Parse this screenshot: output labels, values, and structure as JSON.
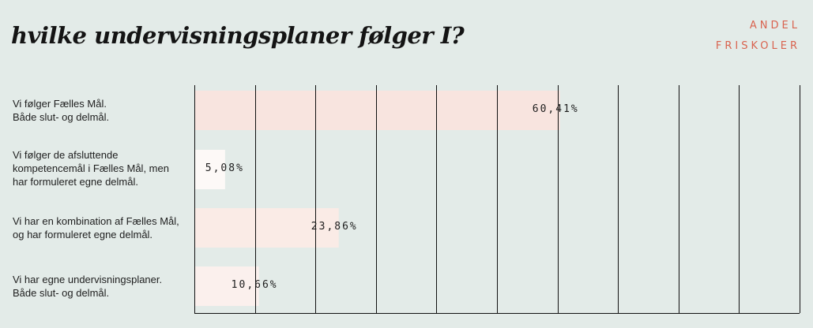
{
  "header": {
    "title": "hvilke undervisningsplaner følger I?",
    "brand_line1": "ANDEL",
    "brand_line2": "FRISKOLER"
  },
  "colors": {
    "background": "#e3ebe8",
    "brand": "#d9634f",
    "bar_fills": [
      "#f8e4df",
      "#fdf9f7",
      "#faebe6",
      "#fbf0ed"
    ],
    "grid": "#111111"
  },
  "chart_data": {
    "type": "bar",
    "orientation": "horizontal",
    "title": "hvilke undervisningsplaner følger I?",
    "categories": [
      "Vi følger Fælles Mål.\nBåde slut- og delmål.",
      "Vi følger de afsluttende\nkompetencemål i Fælles Mål, men\nhar formuleret egne delmål.",
      "Vi har en kombination af Fælles Mål,\nog har formuleret egne delmål.",
      "Vi har egne undervisningsplaner.\nBåde slut- og delmål."
    ],
    "values": [
      60.41,
      5.08,
      23.86,
      10.66
    ],
    "value_labels": [
      "60,41%",
      "5,08%",
      "23,86%",
      "10,66%"
    ],
    "xlim": [
      0,
      100
    ],
    "grid": true,
    "legend": "none"
  }
}
